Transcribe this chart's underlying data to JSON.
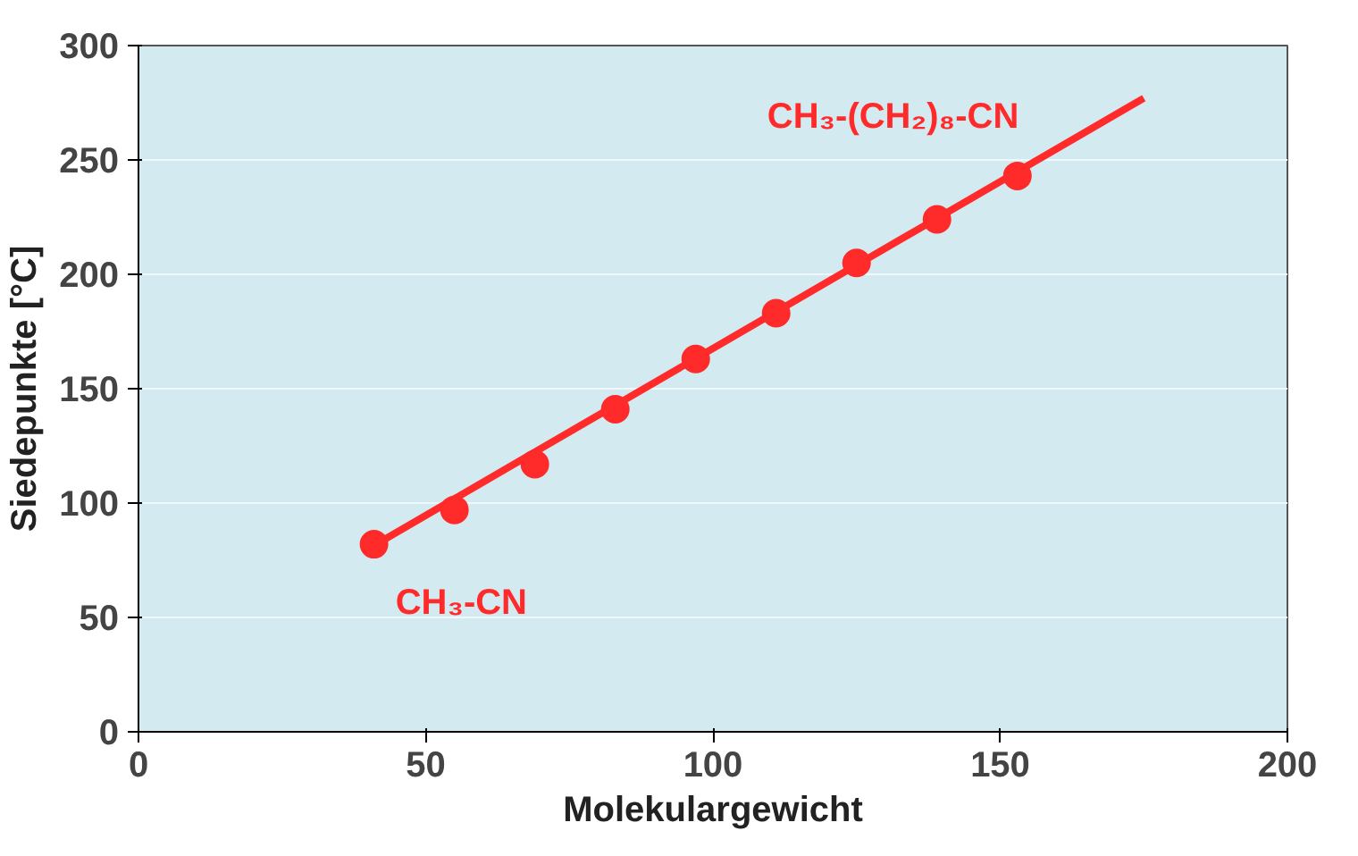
{
  "chart_data": {
    "type": "scatter",
    "xlabel": "Molekulargewicht",
    "ylabel": "Siedepunkte [°C]",
    "xlim": [
      0,
      200
    ],
    "xticks": [
      0,
      50,
      100,
      150,
      200
    ],
    "ylim": [
      0,
      300
    ],
    "yticks": [
      0,
      50,
      100,
      150,
      200,
      250,
      300
    ],
    "grid": "y",
    "series": [
      {
        "type": "line",
        "color": "#ff2a2a",
        "x": [
          40,
          175
        ],
        "values": [
          80,
          277
        ]
      },
      {
        "marker": "circle",
        "color": "#ff2a2a",
        "x": [
          41,
          55,
          69,
          83,
          97,
          111,
          125,
          139,
          153
        ],
        "values": [
          82,
          97,
          117,
          141,
          163,
          183,
          205,
          224,
          243
        ]
      }
    ],
    "annotations": [
      {
        "text": "CH₃-CN",
        "x": 41,
        "y": 82
      },
      {
        "text": "CH₃-(CH₂)₈-CN",
        "x": 153,
        "y": 243
      }
    ]
  }
}
